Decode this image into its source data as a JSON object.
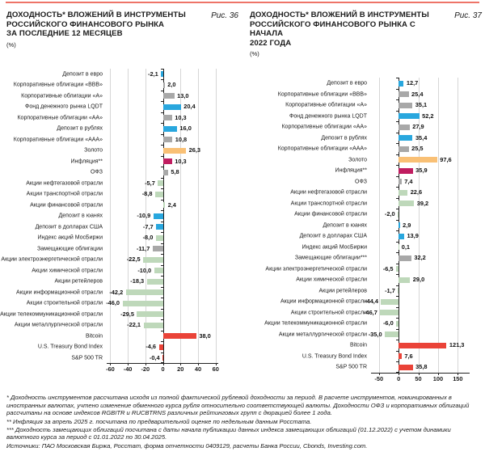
{
  "top_rule_color": "#ee7468",
  "palette": {
    "blue": "#29a7de",
    "gray": "#a8a8a8",
    "orange": "#f9c075",
    "magenta": "#c01d60",
    "green": "#bed8ba",
    "red": "#ea4338",
    "gridline": "#d6d6d6",
    "axis": "#222222"
  },
  "chart_data": [
    {
      "type": "bar",
      "orientation": "horizontal",
      "figure_label": "Рис. 36",
      "title": "ДОХОДНОСТЬ* ВЛОЖЕНИЙ В ИНСТРУМЕНТЫ РОССИЙСКОГО ФИНАНСОВОГО РЫНКА ЗА ПОСЛЕДНИЕ 12 МЕСЯЦЕВ",
      "title_lines": [
        "ДОХОДНОСТЬ* ВЛОЖЕНИЙ В ИНСТРУМЕНТЫ",
        "РОССИЙСКОГО ФИНАНСОВОГО РЫНКА",
        "ЗА ПОСЛЕДНИЕ 12 МЕСЯЦЕВ"
      ],
      "unit_label": "(%)",
      "xlim": [
        -64,
        63
      ],
      "xticks": [
        -60,
        -40,
        -20,
        0,
        20,
        40,
        60
      ],
      "grid": true,
      "categories": [
        "Депозит в евро",
        "Корпоративные облигации «ВВВ»",
        "Корпоративные облигации «А»",
        "Фонд денежного рынка LQDT",
        "Корпоративные облигации «АА»",
        "Депозит в рублях",
        "Корпоративные облигации «ААА»",
        "Золото",
        "Инфляция**",
        "ОФЗ",
        "Акции нефтегазовой отрасли",
        "Акции транспортной отрасли",
        "Акции финансовой отрасли",
        "Депозит в юанях",
        "Депозит в долларах США",
        "Индекс акций МосБиржи",
        "Замещающие облигации",
        "Акции электроэнергетической отрасли",
        "Акции химической отрасли",
        "Акции ретейлеров",
        "Акции информационной отрасли",
        "Акции строительной отрасли",
        "Акции телекоммуникационной отрасли",
        "Акции металлургической отрасли",
        "Bitcoin",
        "U.S. Treasury Bond Index",
        "S&P 500 TR"
      ],
      "values": [
        -2.1,
        2.0,
        13.0,
        20.4,
        10.3,
        16.0,
        10.8,
        26.3,
        10.3,
        5.8,
        -5.7,
        -8.8,
        2.4,
        -10.9,
        -7.7,
        -8.0,
        -11.7,
        -22.5,
        -10.0,
        -18.3,
        -42.2,
        -46.0,
        -29.5,
        -22.1,
        38.0,
        -4.6,
        -0.4
      ],
      "value_labels": [
        "-2,1",
        "2,0",
        "13,0",
        "20,4",
        "10,3",
        "16,0",
        "10,8",
        "26,3",
        "10,3",
        "5,8",
        "-5,7",
        "-8,8",
        "2,4",
        "-10,9",
        "-7,7",
        "-8,0",
        "-11,7",
        "-22,5",
        "-10,0",
        "-18,3",
        "-42,2",
        "-46,0",
        "-29,5",
        "-22,1",
        "38,0",
        "-4,6",
        "-0,4"
      ],
      "bar_colors": [
        "blue",
        "gray",
        "gray",
        "blue",
        "gray",
        "blue",
        "gray",
        "orange",
        "magenta",
        "gray",
        "green",
        "green",
        "green",
        "blue",
        "blue",
        "green",
        "gray",
        "green",
        "green",
        "green",
        "green",
        "green",
        "green",
        "green",
        "red",
        "red",
        "red"
      ]
    },
    {
      "type": "bar",
      "orientation": "horizontal",
      "figure_label": "Рис. 37",
      "title": "ДОХОДНОСТЬ* ВЛОЖЕНИЙ В ИНСТРУМЕНТЫ РОССИЙСКОГО ФИНАНСОВОГО РЫНКА С НАЧАЛА 2022 ГОДА",
      "title_lines": [
        "ДОХОДНОСТЬ* ВЛОЖЕНИЙ В ИНСТРУМЕНТЫ",
        "РОССИЙСКОГО ФИНАНСОВОГО РЫНКА С НАЧАЛА",
        "2022 ГОДА"
      ],
      "unit_label": "(%)",
      "xlim": [
        -70,
        180
      ],
      "xticks": [
        -50,
        0,
        50,
        100,
        150
      ],
      "grid": true,
      "categories": [
        "Депозит в евро",
        "Корпоративные облигации «ВВВ»",
        "Корпоративные облигации «А»",
        "Фонд денежного рынка LQDT",
        "Корпоративные облигации «АА»",
        "Депозит в рублях",
        "Корпоративные облигации «ААА»",
        "Золото",
        "Инфляция**",
        "ОФЗ",
        "Акции нефтегазовой отрасли",
        "Акции транспортной отрасли",
        "Акции финансовой отрасли",
        "Депозит в юанях",
        "Депозит в долларах США",
        "Индекс акций МосБиржи",
        "Замещающие облигации***",
        "Акции электроэнергетической отрасли",
        "Акции химической отрасли",
        "Акции ретейлеров",
        "Акции информационной отрасли",
        "Акции строительной отрасли",
        "Акции телекоммуникационной отрасли",
        "Акции металлургической отрасли",
        "Bitcoin",
        "U.S. Treasury Bond Index",
        "S&P 500 TR"
      ],
      "values": [
        12.7,
        25.4,
        35.1,
        52.2,
        27.9,
        35.4,
        25.5,
        97.6,
        35.9,
        7.4,
        22.6,
        39.2,
        -2.0,
        2.9,
        13.9,
        0.1,
        32.2,
        -6.5,
        29.0,
        -1.7,
        -44.4,
        -46.7,
        -6.0,
        -35.0,
        121.3,
        7.6,
        35.8
      ],
      "value_labels": [
        "12,7",
        "25,4",
        "35,1",
        "52,2",
        "27,9",
        "35,4",
        "25,5",
        "97,6",
        "35,9",
        "7,4",
        "22,6",
        "39,2",
        "-2,0",
        "2,9",
        "13,9",
        "0,1",
        "32,2",
        "-6,5",
        "29,0",
        "-1,7",
        "-44,4",
        "-46,7",
        "-6,0",
        "-35,0",
        "121,3",
        "7,6",
        "35,8"
      ],
      "bar_colors": [
        "blue",
        "gray",
        "gray",
        "blue",
        "gray",
        "blue",
        "gray",
        "orange",
        "magenta",
        "gray",
        "green",
        "green",
        "green",
        "blue",
        "blue",
        "green",
        "gray",
        "green",
        "green",
        "green",
        "green",
        "green",
        "green",
        "green",
        "red",
        "red",
        "red"
      ]
    }
  ],
  "footnotes": [
    "* Доходность инструментов рассчитана исходя из полной фактической рублевой доходности за период. В расчете инструментов, номинированных в иностранных валютах, учтено изменение обменного курса рубля относительно соответствующей валюты. Доходности ОФЗ и корпоративных облигаций рассчитаны на основе индексов RGBITR и RUCBTRNS различных рейтинговых групп с дюрацией более 1 года.",
    "** Инфляция за апрель 2025 г. посчитана по предварительной оценке по недельным данным Росстата.",
    "*** Доходность замещающих облигаций посчитана с даты начала публикации данных индекса замещающих облигаций (01.12.2022) с учетом динамики валютного курса за период с 01.01.2022 по 30.04.2025.",
    "Источники: ПАО Московская Биржа, Росстат, форма отчетности 0409129, расчеты Банка России, Cbonds, Investing.com."
  ]
}
